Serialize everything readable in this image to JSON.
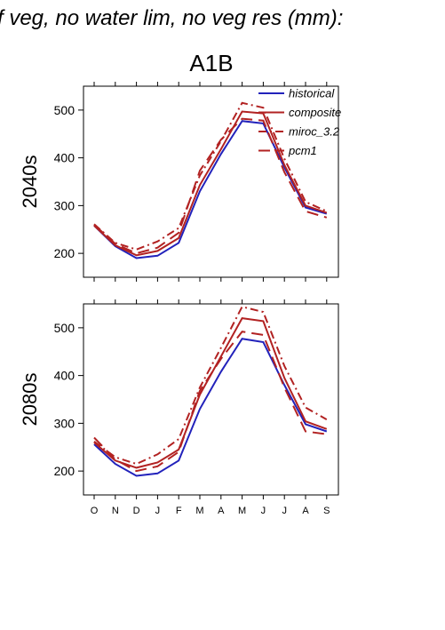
{
  "header": {
    "title": "f veg, no water lim, no veg res (mm):",
    "scenario": "A1B"
  },
  "colors": {
    "historical": "#2222bb",
    "scenario": "#b22222"
  },
  "chart_data": [
    {
      "type": "line",
      "panel_label": "2040s",
      "categories": [
        "O",
        "N",
        "D",
        "J",
        "F",
        "M",
        "A",
        "M",
        "J",
        "J",
        "A",
        "S"
      ],
      "ylim": [
        150,
        550
      ],
      "yticks": [
        200,
        300,
        400,
        500
      ],
      "series": [
        {
          "name": "historical",
          "style": "solid-blue",
          "values": [
            258,
            215,
            190,
            195,
            222,
            330,
            408,
            477,
            472,
            380,
            296,
            283
          ]
        },
        {
          "name": "composite",
          "style": "solid-red",
          "values": [
            258,
            217,
            196,
            205,
            232,
            343,
            418,
            497,
            493,
            385,
            300,
            285
          ]
        },
        {
          "name": "miroc_3.2",
          "style": "dashdot-red",
          "values": [
            261,
            222,
            208,
            225,
            253,
            363,
            435,
            515,
            505,
            398,
            308,
            288
          ]
        },
        {
          "name": "pcm1",
          "style": "dashed-red",
          "values": [
            260,
            220,
            200,
            212,
            243,
            373,
            438,
            482,
            478,
            370,
            288,
            275
          ]
        }
      ]
    },
    {
      "type": "line",
      "panel_label": "2080s",
      "categories": [
        "O",
        "N",
        "D",
        "J",
        "F",
        "M",
        "A",
        "M",
        "J",
        "J",
        "A",
        "S"
      ],
      "ylim": [
        150,
        550
      ],
      "yticks": [
        200,
        300,
        400,
        500
      ],
      "series": [
        {
          "name": "historical",
          "style": "solid-blue",
          "values": [
            256,
            215,
            190,
            195,
            222,
            330,
            408,
            477,
            470,
            380,
            298,
            283
          ]
        },
        {
          "name": "composite",
          "style": "solid-red",
          "values": [
            260,
            222,
            207,
            218,
            245,
            360,
            440,
            520,
            514,
            395,
            304,
            288
          ]
        },
        {
          "name": "miroc_3.2",
          "style": "dashdot-red",
          "values": [
            262,
            229,
            215,
            235,
            267,
            375,
            458,
            544,
            533,
            420,
            333,
            308
          ]
        },
        {
          "name": "pcm1",
          "style": "dashed-red",
          "values": [
            270,
            224,
            200,
            210,
            240,
            368,
            435,
            492,
            485,
            375,
            283,
            277
          ]
        }
      ]
    }
  ]
}
